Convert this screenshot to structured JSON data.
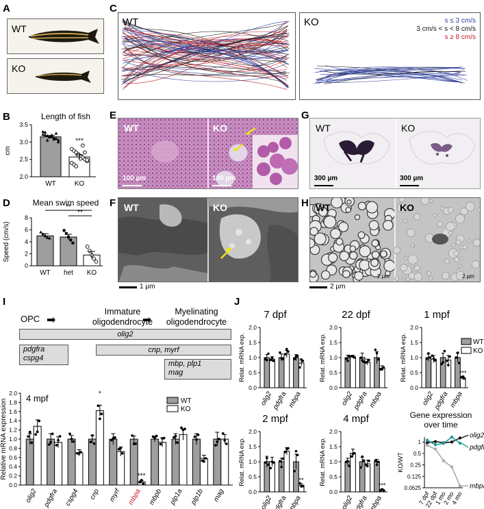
{
  "panels": {
    "A": {
      "label": "A",
      "wt": "WT",
      "ko": "KO"
    },
    "B": {
      "label": "B"
    },
    "C": {
      "label": "C",
      "wt": "WT",
      "ko": "KO",
      "legend": [
        {
          "text": "s ≤ 3 cm/s",
          "color": "#2f3f9f"
        },
        {
          "text": "3 cm/s < s < 8 cm/s",
          "color": "#111111"
        },
        {
          "text": "s ≥ 8 cm/s",
          "color": "#c0202a"
        }
      ]
    },
    "D": {
      "label": "D"
    },
    "E": {
      "label": "E",
      "wt": "WT",
      "ko": "KO",
      "scale_wt": "100 µm",
      "scale_ko": "100 µm"
    },
    "F": {
      "label": "F",
      "wt": "WT",
      "ko": "KO",
      "scale": "1 µm"
    },
    "G": {
      "label": "G",
      "wt": "WT",
      "ko": "KO",
      "scale_wt": "300 µm",
      "scale_ko": "300 µm"
    },
    "H": {
      "label": "H",
      "wt": "WT",
      "ko": "KO",
      "scale": "2 µm",
      "inset_a": "2 µm",
      "inset_b": "2 µm"
    },
    "I": {
      "label": "I",
      "stages": [
        "OPC",
        "Immature\noligodendrocyte",
        "Myelinating\noligodendrocyte"
      ],
      "boxes": {
        "olig2": "olig2",
        "pdgfra": "pdgfra\ncspg4",
        "cnp": "cnp, myrf",
        "mbp": "mbp, plp1\nmag"
      }
    },
    "J": {
      "label": "J"
    }
  },
  "colors": {
    "wt_bar": "#9e9e9e",
    "ko_bar": "#ffffff",
    "mbpa_highlight": "#c0202a",
    "olig2_line": "#111111",
    "pdgfra_line": "#1f9c93",
    "mbpa_line": "#a9a9a9"
  },
  "chart_data": [
    {
      "id": "B",
      "type": "bar",
      "title": "Length of fish",
      "categories": [
        "WT",
        "KO"
      ],
      "values": [
        3.15,
        2.57
      ],
      "errors": [
        0.04,
        0.06
      ],
      "ylabel": "cm",
      "ylim": [
        2.0,
        3.5
      ],
      "yticks": [
        2.0,
        2.5,
        3.0,
        3.5
      ],
      "significance": "***",
      "points": [
        [
          3.22,
          3.2,
          3.18,
          3.16,
          3.15,
          3.12,
          3.1,
          3.06,
          3.3,
          3.28,
          3.05,
          3.14,
          3.2,
          3.08,
          3.25,
          3.0
        ],
        [
          2.8,
          2.75,
          2.7,
          2.65,
          2.6,
          2.55,
          2.5,
          2.45,
          2.4,
          2.35,
          2.3,
          2.62,
          2.52,
          2.9,
          2.7,
          2.48
        ]
      ]
    },
    {
      "id": "D",
      "type": "bar",
      "title": "Mean swim speed",
      "categories": [
        "WT",
        "het",
        "KO"
      ],
      "values": [
        5.0,
        4.8,
        1.8
      ],
      "errors": [
        0.35,
        0.45,
        0.6
      ],
      "ylabel": "Speed (cm/s)",
      "ylim": [
        0,
        8
      ],
      "yticks": [
        0,
        2,
        4,
        6,
        8
      ],
      "points": [
        [
          5.6,
          5.3,
          5.0,
          4.7,
          4.6
        ],
        [
          5.9,
          5.4,
          4.8,
          4.3,
          3.8
        ],
        [
          3.2,
          2.5,
          1.8,
          1.2,
          0.7
        ]
      ],
      "significance": [
        {
          "from": "WT",
          "to": "KO",
          "label": "**"
        },
        {
          "from": "het",
          "to": "KO",
          "label": "**"
        }
      ]
    },
    {
      "id": "I",
      "type": "bar",
      "subtitle": "4 mpf",
      "categories": [
        "olig2",
        "pdgfra",
        "cspg4",
        "cnp",
        "myrf",
        "mbpa",
        "mbpb",
        "plp1a",
        "plp1b",
        "mag"
      ],
      "series": [
        {
          "name": "WT",
          "values": [
            1.0,
            1.0,
            1.0,
            1.0,
            1.0,
            1.0,
            1.0,
            1.0,
            1.0,
            1.0
          ],
          "errors": [
            0.12,
            0.12,
            0.08,
            0.08,
            0.12,
            0.07,
            0.06,
            0.12,
            0.12,
            0.15
          ]
        },
        {
          "name": "KO",
          "values": [
            1.28,
            0.93,
            0.7,
            1.62,
            0.73,
            0.07,
            0.93,
            1.1,
            0.58,
            1.0
          ],
          "errors": [
            0.14,
            0.12,
            0.07,
            0.12,
            0.1,
            0.03,
            0.1,
            0.12,
            0.07,
            0.1
          ]
        }
      ],
      "ylabel": "Relative mRNA expression",
      "ylim": [
        0,
        2.0
      ],
      "yticks": [
        0.0,
        0.2,
        0.4,
        0.6,
        0.8,
        1.0,
        1.2,
        1.4,
        1.6,
        1.8,
        2.0
      ],
      "significance": [
        {
          "category": "cnp",
          "label": "*"
        },
        {
          "category": "mbpa",
          "label": "***"
        }
      ],
      "highlight": "mbpa"
    },
    {
      "id": "J1",
      "type": "bar",
      "title": "7 dpf",
      "categories": [
        "olig2",
        "pdgfra",
        "mbpa"
      ],
      "series": [
        {
          "name": "WT",
          "values": [
            1.0,
            1.0,
            1.0
          ],
          "errors": [
            0.1,
            0.12,
            0.1
          ]
        },
        {
          "name": "KO",
          "values": [
            0.95,
            1.12,
            0.82
          ],
          "errors": [
            0.08,
            0.12,
            0.1
          ]
        }
      ],
      "ylabel": "Relat. mRNA exp.",
      "ylim": [
        0,
        2.0
      ],
      "yticks": [
        0.0,
        0.5,
        1.0,
        1.5,
        2.0
      ]
    },
    {
      "id": "J2",
      "type": "bar",
      "title": "22 dpf",
      "categories": [
        "olig2",
        "pdgfra",
        "mbpa"
      ],
      "series": [
        {
          "name": "WT",
          "values": [
            1.0,
            1.0,
            1.0
          ],
          "errors": [
            0.08,
            0.15,
            0.2
          ]
        },
        {
          "name": "KO",
          "values": [
            1.03,
            0.85,
            0.65
          ],
          "errors": [
            0.05,
            0.1,
            0.08
          ]
        }
      ],
      "ylabel": "Relat. mRNA exp.",
      "ylim": [
        0,
        2.0
      ],
      "yticks": [
        0.0,
        0.5,
        1.0,
        1.5,
        2.0
      ]
    },
    {
      "id": "J3",
      "type": "bar",
      "title": "1 mpf",
      "categories": [
        "olig2",
        "pdgfra",
        "mbpa"
      ],
      "series": [
        {
          "name": "WT",
          "values": [
            1.0,
            1.0,
            1.0
          ],
          "errors": [
            0.12,
            0.15,
            0.15
          ]
        },
        {
          "name": "KO",
          "values": [
            0.95,
            0.92,
            0.32
          ],
          "errors": [
            0.12,
            0.15,
            0.06
          ]
        }
      ],
      "ylabel": "Relat. mRNA exp.",
      "ylim": [
        0,
        2.0
      ],
      "yticks": [
        0.0,
        0.5,
        1.0,
        1.5,
        2.0
      ],
      "significance": [
        {
          "category": "mbpa",
          "label": "***"
        }
      ]
    },
    {
      "id": "J4",
      "type": "bar",
      "title": "2 mpf",
      "categories": [
        "olig2",
        "pdgfra",
        "mbpa"
      ],
      "series": [
        {
          "name": "WT",
          "values": [
            1.0,
            1.0,
            1.0
          ],
          "errors": [
            0.18,
            0.12,
            0.25
          ]
        },
        {
          "name": "KO",
          "values": [
            1.0,
            1.35,
            0.22
          ],
          "errors": [
            0.15,
            0.12,
            0.05
          ]
        }
      ],
      "ylabel": "Relat. mRNA exp.",
      "ylim": [
        0,
        2.0
      ],
      "yticks": [
        0.0,
        0.5,
        1.0,
        1.5,
        2.0
      ],
      "significance": [
        {
          "category": "mbpa",
          "label": "**"
        }
      ]
    },
    {
      "id": "J5",
      "type": "bar",
      "title": "4 mpf",
      "categories": [
        "olig2",
        "pdgfra",
        "mbpa"
      ],
      "series": [
        {
          "name": "WT",
          "values": [
            1.0,
            1.0,
            1.0
          ],
          "errors": [
            0.12,
            0.15,
            0.08
          ]
        },
        {
          "name": "KO",
          "values": [
            1.28,
            0.93,
            0.07
          ],
          "errors": [
            0.14,
            0.12,
            0.03
          ]
        }
      ],
      "ylabel": "Relat. mRNA exp.",
      "ylim": [
        0,
        2.0
      ],
      "yticks": [
        0.0,
        0.5,
        1.0,
        1.5,
        2.0
      ],
      "significance": [
        {
          "category": "mbpa",
          "label": "***"
        }
      ]
    },
    {
      "id": "J6",
      "type": "line",
      "title": "Gene expression\nover time",
      "x": [
        "7 dpf",
        "22 dpf",
        "1 mo",
        "2 mo",
        "4 mo"
      ],
      "ylabel": "KO/WT",
      "yscale": "log",
      "yticks": [
        0.0625,
        0.125,
        0.25,
        0.5,
        1
      ],
      "ytick_labels": [
        "0.0625",
        "0.125",
        "0.25",
        "0.5",
        "1"
      ],
      "series": [
        {
          "name": "olig2",
          "values": [
            0.95,
            1.03,
            0.95,
            1.0,
            1.28
          ]
        },
        {
          "name": "pdgfra",
          "values": [
            1.12,
            0.85,
            0.92,
            1.35,
            0.93
          ]
        },
        {
          "name": "mbpa",
          "values": [
            0.82,
            0.65,
            0.32,
            0.22,
            0.07
          ]
        }
      ]
    }
  ],
  "legends": {
    "wt": "WT",
    "ko": "KO"
  }
}
